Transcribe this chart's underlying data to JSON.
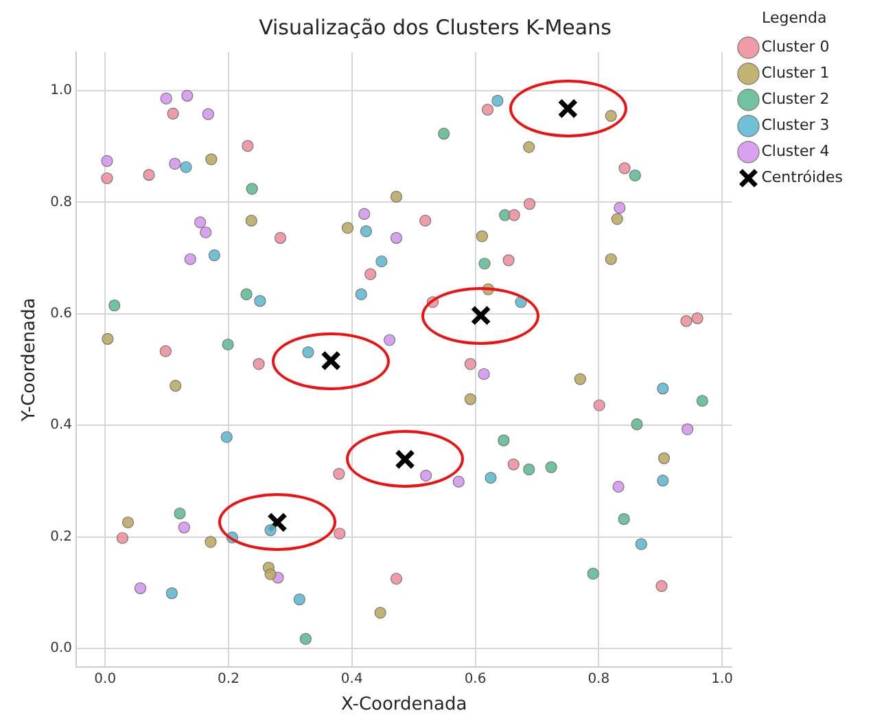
{
  "chart_data": {
    "type": "scatter",
    "title": "Visualização dos Clusters K-Means",
    "xlabel": "X-Coordenada",
    "ylabel": "Y-Coordenada",
    "legend_title": "Legenda",
    "legend": "top right",
    "grid": true,
    "xlim": [
      -0.047,
      1.016
    ],
    "ylim": [
      -0.033,
      1.069
    ],
    "xticks": [
      {
        "value": 0,
        "label": "0.0"
      },
      {
        "value": 0.2,
        "label": "0.2"
      },
      {
        "value": 0.4,
        "label": "0.4"
      },
      {
        "value": 0.6,
        "label": "0.6"
      },
      {
        "value": 0.8,
        "label": "0.8"
      },
      {
        "value": 1,
        "label": "1.0"
      }
    ],
    "yticks": [
      {
        "value": 0,
        "label": "0.0"
      },
      {
        "value": 0.2,
        "label": "0.2"
      },
      {
        "value": 0.4,
        "label": "0.4"
      },
      {
        "value": 0.6,
        "label": "0.6"
      },
      {
        "value": 0.8,
        "label": "0.8"
      },
      {
        "value": 1,
        "label": "1.0"
      }
    ],
    "series": [
      {
        "name": "Cluster 0",
        "color": "#ee8e9c",
        "marker": "circle",
        "x": [
          0.11,
          0.231,
          0.003,
          0.071,
          0.284,
          0.43,
          0.098,
          0.249,
          0.62,
          0.842,
          0.688,
          0.663,
          0.519,
          0.654,
          0.531,
          0.942,
          0.96,
          0.592,
          0.379,
          0.028,
          0.38,
          0.472,
          0.801,
          0.662,
          0.902
        ],
        "values": [
          0.959,
          0.901,
          0.843,
          0.849,
          0.736,
          0.671,
          0.533,
          0.51,
          0.966,
          0.861,
          0.797,
          0.777,
          0.767,
          0.696,
          0.621,
          0.587,
          0.592,
          0.51,
          0.313,
          0.198,
          0.206,
          0.125,
          0.436,
          0.33,
          0.112
        ]
      },
      {
        "name": "Cluster 1",
        "color": "#bba860",
        "marker": "circle",
        "x": [
          0.172,
          0.472,
          0.237,
          0.393,
          0.004,
          0.82,
          0.687,
          0.83,
          0.611,
          0.82,
          0.621,
          0.114,
          0.037,
          0.171,
          0.265,
          0.268,
          0.446,
          0.592,
          0.77,
          0.906
        ],
        "values": [
          0.877,
          0.81,
          0.767,
          0.754,
          0.555,
          0.955,
          0.899,
          0.77,
          0.739,
          0.698,
          0.644,
          0.471,
          0.226,
          0.191,
          0.145,
          0.133,
          0.064,
          0.447,
          0.483,
          0.341
        ]
      },
      {
        "name": "Cluster 2",
        "color": "#5dbb92",
        "marker": "circle",
        "x": [
          0.238,
          0.015,
          0.229,
          0.199,
          0.549,
          0.859,
          0.648,
          0.615,
          0.121,
          0.325,
          0.968,
          0.862,
          0.646,
          0.687,
          0.723,
          0.841,
          0.791
        ],
        "values": [
          0.824,
          0.615,
          0.635,
          0.545,
          0.923,
          0.848,
          0.777,
          0.69,
          0.242,
          0.017,
          0.444,
          0.402,
          0.373,
          0.321,
          0.325,
          0.232,
          0.134
        ]
      },
      {
        "name": "Cluster 3",
        "color": "#5db8d0",
        "marker": "circle",
        "x": [
          0.131,
          0.423,
          0.177,
          0.448,
          0.251,
          0.415,
          0.329,
          0.636,
          0.674,
          0.197,
          0.206,
          0.268,
          0.108,
          0.315,
          0.904,
          0.625,
          0.904,
          0.869
        ],
        "values": [
          0.863,
          0.748,
          0.705,
          0.694,
          0.623,
          0.635,
          0.531,
          0.982,
          0.621,
          0.379,
          0.199,
          0.212,
          0.099,
          0.088,
          0.466,
          0.306,
          0.301,
          0.187
        ]
      },
      {
        "name": "Cluster 4",
        "color": "#d495ec",
        "marker": "circle",
        "x": [
          0.099,
          0.133,
          0.167,
          0.003,
          0.113,
          0.154,
          0.163,
          0.42,
          0.472,
          0.138,
          0.461,
          0.834,
          0.128,
          0.28,
          0.057,
          0.614,
          0.944,
          0.52,
          0.573,
          0.832
        ],
        "values": [
          0.986,
          0.991,
          0.958,
          0.874,
          0.869,
          0.764,
          0.746,
          0.779,
          0.736,
          0.698,
          0.553,
          0.79,
          0.217,
          0.127,
          0.108,
          0.492,
          0.393,
          0.31,
          0.299,
          0.29
        ]
      },
      {
        "name": "Centróides",
        "color": "#000000",
        "marker": "cross",
        "x": [
          0.75,
          0.609,
          0.366,
          0.486,
          0.279
        ],
        "values": [
          0.968,
          0.597,
          0.516,
          0.339,
          0.226
        ]
      }
    ]
  }
}
